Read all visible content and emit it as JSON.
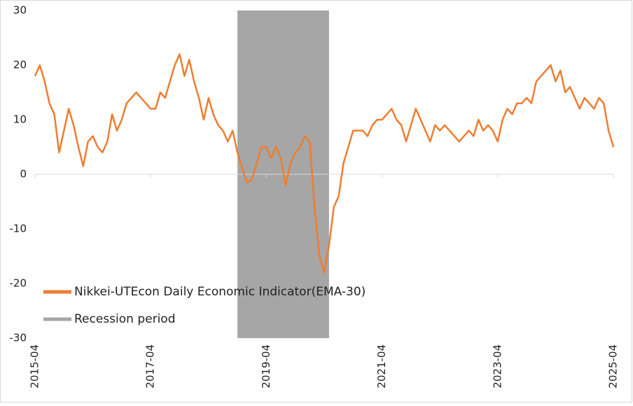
{
  "chart_data": {
    "type": "line",
    "x": [
      "2015-04",
      "2015-05",
      "2015-06",
      "2015-07",
      "2015-08",
      "2015-09",
      "2015-10",
      "2015-11",
      "2015-12",
      "2016-01",
      "2016-02",
      "2016-03",
      "2016-04",
      "2016-05",
      "2016-06",
      "2016-07",
      "2016-08",
      "2016-09",
      "2016-10",
      "2016-11",
      "2016-12",
      "2017-01",
      "2017-02",
      "2017-03",
      "2017-04",
      "2017-05",
      "2017-06",
      "2017-07",
      "2017-08",
      "2017-09",
      "2017-10",
      "2017-11",
      "2017-12",
      "2018-01",
      "2018-02",
      "2018-03",
      "2018-04",
      "2018-05",
      "2018-06",
      "2018-07",
      "2018-08",
      "2018-09",
      "2018-10",
      "2018-11",
      "2018-12",
      "2019-01",
      "2019-02",
      "2019-03",
      "2019-04",
      "2019-05",
      "2019-06",
      "2019-07",
      "2019-08",
      "2019-09",
      "2019-10",
      "2019-11",
      "2019-12",
      "2020-01",
      "2020-02",
      "2020-03",
      "2020-04",
      "2020-05",
      "2020-06",
      "2020-07",
      "2020-08",
      "2020-09",
      "2020-10",
      "2020-11",
      "2020-12",
      "2021-01",
      "2021-02",
      "2021-03",
      "2021-04",
      "2021-05",
      "2021-06",
      "2021-07",
      "2021-08",
      "2021-09",
      "2021-10",
      "2021-11",
      "2021-12",
      "2022-01",
      "2022-02",
      "2022-03",
      "2022-04",
      "2022-05",
      "2022-06",
      "2022-07",
      "2022-08",
      "2022-09",
      "2022-10",
      "2022-11",
      "2022-12",
      "2023-01",
      "2023-02",
      "2023-03",
      "2023-04",
      "2023-05",
      "2023-06",
      "2023-07",
      "2023-08",
      "2023-09",
      "2023-10",
      "2023-11",
      "2023-12",
      "2024-01",
      "2024-02",
      "2024-03",
      "2024-04",
      "2024-05",
      "2024-06",
      "2024-07",
      "2024-08",
      "2024-09",
      "2024-10",
      "2024-11",
      "2024-12",
      "2025-01",
      "2025-02",
      "2025-03",
      "2025-04"
    ],
    "series": [
      {
        "name": "Nikkei-UTEcon Daily Economic Indicator(EMA-30)",
        "color": "#ed7d31",
        "values": [
          18,
          20,
          17,
          13,
          11,
          4,
          8,
          12,
          9,
          5,
          1.5,
          6,
          7,
          5,
          4,
          6,
          11,
          8,
          10,
          13,
          14,
          15,
          14,
          13,
          12,
          12,
          15,
          14,
          17,
          20,
          22,
          18,
          21,
          17,
          14,
          10,
          14,
          11,
          9,
          8,
          6,
          8,
          4,
          1,
          -1.5,
          -1,
          2,
          5,
          5,
          3,
          5,
          3,
          -2,
          2,
          4,
          5,
          7,
          6,
          -6,
          -15,
          -18,
          -13,
          -6,
          -4,
          2,
          5,
          8,
          8,
          8,
          7,
          9,
          10,
          10,
          11,
          12,
          10,
          9,
          6,
          9,
          12,
          10,
          8,
          6,
          9,
          8,
          9,
          8,
          7,
          6,
          7,
          8,
          7,
          10,
          8,
          9,
          8,
          6,
          10,
          12,
          11,
          13,
          13,
          14,
          13,
          17,
          18,
          19,
          20,
          17,
          19,
          15,
          16,
          14,
          12,
          14,
          13,
          12,
          14,
          13,
          8,
          5
        ]
      },
      {
        "name": "Recession period",
        "color": "#a6a6a6",
        "span": [
          "2018-10",
          "2020-05"
        ]
      }
    ],
    "xlim": [
      "2015-04",
      "2025-04"
    ],
    "xticks": [
      "2015-04",
      "2017-04",
      "2019-04",
      "2021-04",
      "2023-04",
      "2025-04"
    ],
    "ylim": [
      -30,
      30
    ],
    "yticks": [
      -30,
      -20,
      -10,
      0,
      10,
      20,
      30
    ]
  }
}
